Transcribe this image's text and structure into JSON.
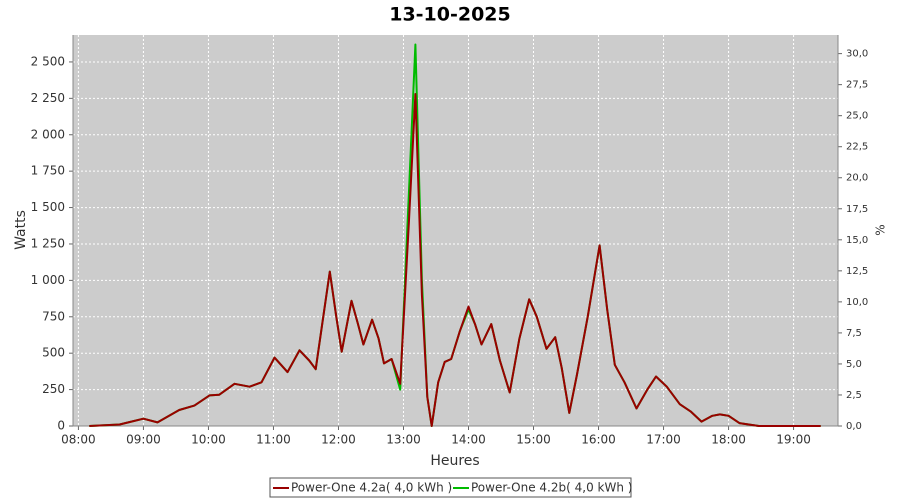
{
  "chart_data": {
    "type": "line",
    "title": "13-10-2025",
    "xlabel": "Heures",
    "ylabel": "Watts",
    "y2label": "%",
    "grid": true,
    "legend": "bottom",
    "x": [
      "08:10",
      "08:38",
      "09:00",
      "09:13",
      "09:33",
      "09:47",
      "10:01",
      "10:10",
      "10:24",
      "10:38",
      "10:49",
      "11:01",
      "11:13",
      "11:24",
      "11:33",
      "11:39",
      "11:45",
      "11:52",
      "11:58",
      "12:03",
      "12:12",
      "12:18",
      "12:23",
      "12:31",
      "12:37",
      "12:42",
      "12:49",
      "12:57",
      "13:05",
      "13:11",
      "13:17",
      "13:22",
      "13:26",
      "13:32",
      "13:38",
      "13:44",
      "13:52",
      "14:00",
      "14:06",
      "14:12",
      "14:21",
      "14:29",
      "14:38",
      "14:47",
      "14:56",
      "15:03",
      "15:12",
      "15:20",
      "15:26",
      "15:33",
      "15:40",
      "15:50",
      "16:01",
      "16:08",
      "16:15",
      "16:24",
      "16:35",
      "16:45",
      "16:53",
      "17:03",
      "17:15",
      "17:25",
      "17:35",
      "17:45",
      "17:52",
      "18:00",
      "18:10",
      "18:28",
      "19:25"
    ],
    "series": [
      {
        "name": "Power-One 4.2a( 4,0 kWh )",
        "color": "#990000",
        "values": [
          0,
          10,
          50,
          25,
          110,
          140,
          210,
          215,
          290,
          270,
          300,
          470,
          370,
          520,
          450,
          390,
          700,
          1060,
          750,
          510,
          860,
          700,
          560,
          730,
          600,
          430,
          460,
          290,
          1400,
          2280,
          900,
          200,
          0,
          300,
          440,
          460,
          650,
          820,
          700,
          560,
          700,
          450,
          230,
          600,
          870,
          750,
          530,
          610,
          400,
          90,
          350,
          750,
          1240,
          800,
          420,
          300,
          120,
          250,
          340,
          270,
          150,
          100,
          30,
          70,
          80,
          70,
          20,
          0,
          0
        ]
      },
      {
        "name": "Power-One 4.2b( 4,0 kWh )",
        "color": "#00bb00",
        "values": [
          0,
          10,
          50,
          25,
          110,
          140,
          210,
          215,
          290,
          270,
          300,
          470,
          370,
          520,
          450,
          390,
          700,
          1060,
          750,
          510,
          860,
          700,
          560,
          730,
          600,
          430,
          460,
          250,
          1600,
          2620,
          1000,
          200,
          0,
          300,
          440,
          460,
          650,
          800,
          700,
          560,
          700,
          450,
          230,
          600,
          870,
          750,
          530,
          610,
          400,
          90,
          350,
          750,
          1240,
          800,
          420,
          300,
          120,
          250,
          340,
          270,
          150,
          100,
          30,
          70,
          80,
          70,
          20,
          0,
          0
        ]
      }
    ],
    "xlim": [
      "07:55",
      "19:41"
    ],
    "xticks": [
      "08:00",
      "09:00",
      "10:00",
      "11:00",
      "12:00",
      "13:00",
      "14:00",
      "15:00",
      "16:00",
      "17:00",
      "18:00",
      "19:00"
    ],
    "ylim": [
      0,
      2685
    ],
    "yticks": [
      0,
      250,
      500,
      750,
      {
        "value": 1000,
        "label": "1 000"
      },
      {
        "value": 1250,
        "label": "1 250"
      },
      {
        "value": 1500,
        "label": "1 500"
      },
      {
        "value": 1750,
        "label": "1 750"
      },
      {
        "value": 2000,
        "label": "2 000"
      },
      {
        "value": 2250,
        "label": "2 250"
      },
      {
        "value": 2500,
        "label": "2 500"
      }
    ],
    "y2lim": [
      0,
      31.5
    ],
    "y2ticks": [
      {
        "value": 0,
        "label": "0,0"
      },
      {
        "value": 2.5,
        "label": "2,5"
      },
      {
        "value": 5,
        "label": "5,0"
      },
      {
        "value": 7.5,
        "label": "7,5"
      },
      {
        "value": 10,
        "label": "10,0"
      },
      {
        "value": 12.5,
        "label": "12,5"
      },
      {
        "value": 15,
        "label": "15,0"
      },
      {
        "value": 17.5,
        "label": "17,5"
      },
      {
        "value": 20,
        "label": "20,0"
      },
      {
        "value": 22.5,
        "label": "22,5"
      },
      {
        "value": 25,
        "label": "25,0"
      },
      {
        "value": 27.5,
        "label": "27,5"
      },
      {
        "value": 30,
        "label": "30,0"
      }
    ]
  }
}
